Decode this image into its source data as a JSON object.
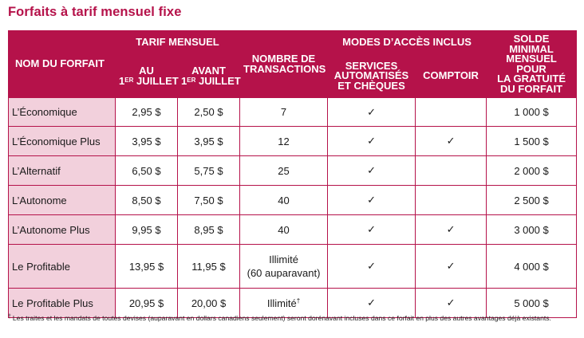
{
  "title": "Forfaits à tarif mensuel fixe",
  "headers": {
    "name": "NOM DU FORFAIT",
    "tarif_group": "TARIF MENSUEL",
    "au": "AU",
    "au_sup": "ER",
    "au_rest": "1",
    "au_month": "JUILLET",
    "avant": "AVANT",
    "avant_num": "1",
    "avant_sup": "ER",
    "avant_month": "JUILLET",
    "transactions_line1": "NOMBRE DE",
    "transactions_line2": "TRANSACTIONS",
    "modes_group": "MODES D’ACCÈS INCLUS",
    "services_line1": "SERVICES",
    "services_line2": "AUTOMATISÉS",
    "services_line3": "ET CHÈQUES",
    "comptoir": "COMPTOIR",
    "solde_line1": "SOLDE",
    "solde_line2": "MINIMAL",
    "solde_line3": "MENSUEL POUR",
    "solde_line4": "LA GRATUITÉ",
    "solde_line5": "DU FORFAIT"
  },
  "check_symbol": "✓",
  "rows": [
    {
      "name": "L’Économique",
      "au": "2,95 $",
      "avant": "2,50 $",
      "transactions": "7",
      "transactions_note": "",
      "transactions_sup": "",
      "services": true,
      "comptoir": false,
      "solde": "1 000 $"
    },
    {
      "name": "L’Économique Plus",
      "au": "3,95 $",
      "avant": "3,95 $",
      "transactions": "12",
      "transactions_note": "",
      "transactions_sup": "",
      "services": true,
      "comptoir": true,
      "solde": "1 500 $"
    },
    {
      "name": "L’Alternatif",
      "au": "6,50 $",
      "avant": "5,75 $",
      "transactions": "25",
      "transactions_note": "",
      "transactions_sup": "",
      "services": true,
      "comptoir": false,
      "solde": "2 000 $"
    },
    {
      "name": "L’Autonome",
      "au": "8,50 $",
      "avant": "7,50 $",
      "transactions": "40",
      "transactions_note": "",
      "transactions_sup": "",
      "services": true,
      "comptoir": false,
      "solde": "2 500 $"
    },
    {
      "name": "L’Autonome Plus",
      "au": "9,95 $",
      "avant": "8,95 $",
      "transactions": "40",
      "transactions_note": "",
      "transactions_sup": "",
      "services": true,
      "comptoir": true,
      "solde": "3 000 $"
    },
    {
      "name": "Le Profitable",
      "au": "13,95 $",
      "avant": "11,95 $",
      "transactions": "Illimité",
      "transactions_note": "(60 auparavant)",
      "transactions_sup": "",
      "services": true,
      "comptoir": true,
      "solde": "4 000 $"
    },
    {
      "name": "Le Profitable Plus",
      "au": "20,95 $",
      "avant": "20,00 $",
      "transactions": "Illimité",
      "transactions_note": "",
      "transactions_sup": "†",
      "services": true,
      "comptoir": true,
      "solde": "5 000 $"
    }
  ],
  "footnote": {
    "mark": "†",
    "text": "Les traites et les mandats de toutes devises (auparavant en dollars canadiens seulement) seront dorénavant incluses dans ce forfait en plus des autres avantages déjà existants."
  }
}
